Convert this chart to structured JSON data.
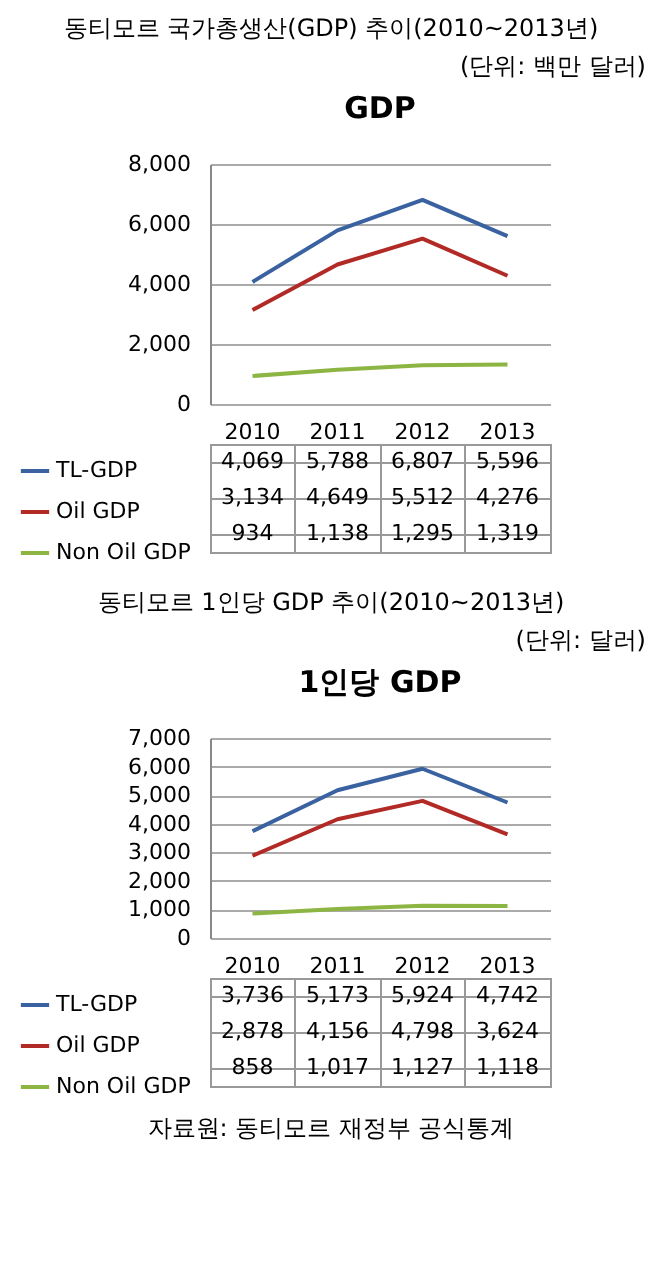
{
  "chart_data": [
    {
      "type": "line",
      "title": "GDP",
      "annotations": [
        "동티모르 국가총생산(GDP) 추이(2010~2013년)",
        "(단위: 백만 달러)"
      ],
      "categories": [
        "2010",
        "2011",
        "2012",
        "2013"
      ],
      "series": [
        {
          "name": "TL-GDP",
          "color": "#3a62a0",
          "values": [
            4069,
            5788,
            6807,
            5596
          ],
          "value_labels": [
            "4,069",
            "5,788",
            "6,807",
            "5,596"
          ]
        },
        {
          "name": "Oil GDP",
          "color": "#b22a26",
          "values": [
            3134,
            4649,
            5512,
            4276
          ],
          "value_labels": [
            "3,134",
            "4,649",
            "5,512",
            "4,276"
          ]
        },
        {
          "name": "Non Oil GDP",
          "color": "#8db543",
          "values": [
            934,
            1138,
            1295,
            1319
          ],
          "value_labels": [
            "934",
            "1,138",
            "1,295",
            "1,319"
          ]
        }
      ],
      "ylim": [
        0,
        8000
      ],
      "yticks": [
        0,
        {
          "value": 2000,
          "label": "2,000"
        },
        {
          "value": 4000,
          "label": "4,000"
        },
        {
          "value": 6000,
          "label": "6,000"
        },
        {
          "value": 8000,
          "label": "8,000"
        }
      ],
      "grid": "y",
      "legend": "bottom",
      "marker": "none",
      "line_style": "solid"
    },
    {
      "type": "line",
      "title": "1인당 GDP",
      "annotations": [
        "동티모르 1인당 GDP 추이(2010~2013년)",
        "(단위: 달러)",
        "자료원: 동티모르 재정부 공식통계"
      ],
      "categories": [
        "2010",
        "2011",
        "2012",
        "2013"
      ],
      "series": [
        {
          "name": "TL-GDP",
          "color": "#3a62a0",
          "values": [
            3736,
            5173,
            5924,
            4742
          ],
          "value_labels": [
            "3,736",
            "5,173",
            "5,924",
            "4,742"
          ]
        },
        {
          "name": "Oil GDP",
          "color": "#b22a26",
          "values": [
            2878,
            4156,
            4798,
            3624
          ],
          "value_labels": [
            "2,878",
            "4,156",
            "4,798",
            "3,624"
          ]
        },
        {
          "name": "Non Oil GDP",
          "color": "#8db543",
          "values": [
            858,
            1017,
            1127,
            1118
          ],
          "value_labels": [
            "858",
            "1,017",
            "1,127",
            "1,118"
          ]
        }
      ],
      "ylim": [
        0,
        7000
      ],
      "yticks": [
        0,
        {
          "value": 1000,
          "label": "1,000"
        },
        {
          "value": 2000,
          "label": "2,000"
        },
        {
          "value": 3000,
          "label": "3,000"
        },
        {
          "value": 4000,
          "label": "4,000"
        },
        {
          "value": 5000,
          "label": "5,000"
        },
        {
          "value": 6000,
          "label": "6,000"
        },
        {
          "value": 7000,
          "label": "7,000"
        }
      ],
      "grid": "y",
      "legend": "bottom",
      "marker": "none",
      "line_style": "solid"
    }
  ]
}
